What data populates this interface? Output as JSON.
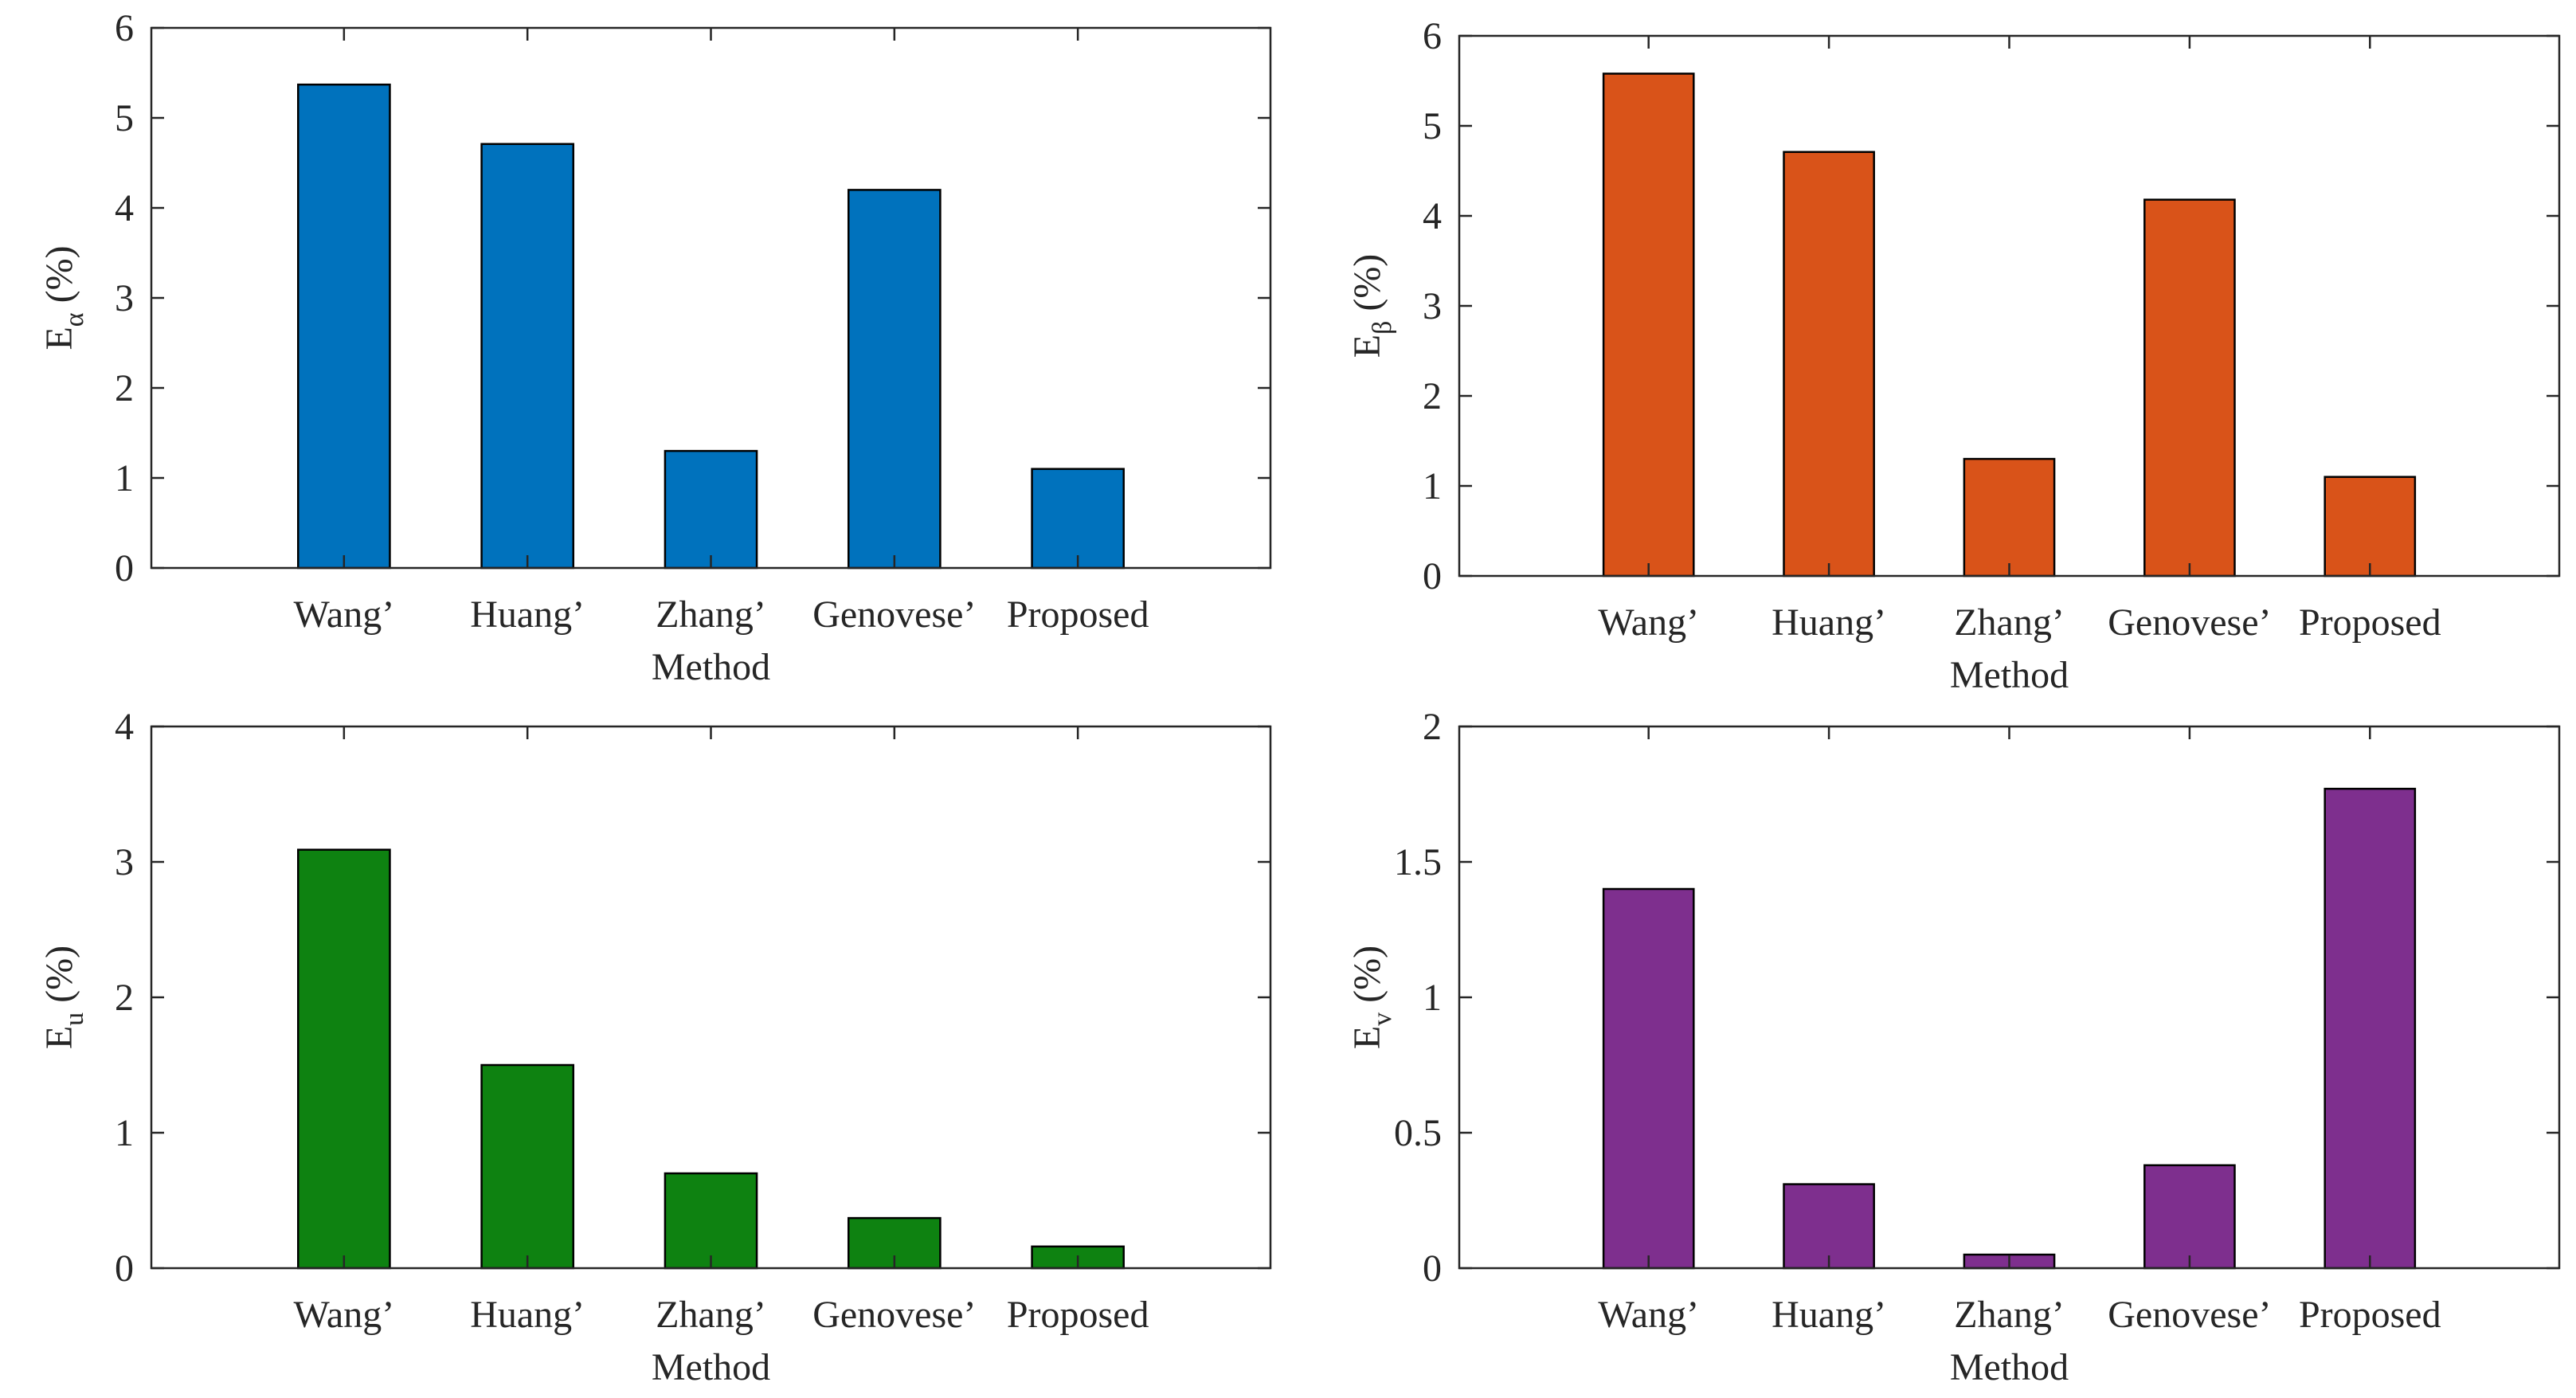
{
  "chart_data": [
    {
      "type": "bar",
      "categories": [
        "Wang’",
        "Huang’",
        "Zhang’",
        "Genovese’",
        "Proposed"
      ],
      "values": [
        5.37,
        4.71,
        1.3,
        4.2,
        1.1
      ],
      "xlabel": "Method",
      "ylabel_main": "E",
      "ylabel_sub": "α",
      "ylabel_unit": "(%)",
      "ylim": [
        0,
        6
      ],
      "yticks": [
        0,
        1,
        2,
        3,
        4,
        5,
        6
      ],
      "ytick_labels": [
        "0",
        "1",
        "2",
        "3",
        "4",
        "5",
        "6"
      ],
      "color": "#0072BD",
      "grid": false
    },
    {
      "type": "bar",
      "categories": [
        "Wang’",
        "Huang’",
        "Zhang’",
        "Genovese’",
        "Proposed"
      ],
      "values": [
        5.58,
        4.71,
        1.3,
        4.18,
        1.1
      ],
      "xlabel": "Method",
      "ylabel_main": "E",
      "ylabel_sub": "β",
      "ylabel_unit": "(%)",
      "ylim": [
        0,
        6
      ],
      "yticks": [
        0,
        1,
        2,
        3,
        4,
        5,
        6
      ],
      "ytick_labels": [
        "0",
        "1",
        "2",
        "3",
        "4",
        "5",
        "6"
      ],
      "color": "#D95319",
      "grid": false
    },
    {
      "type": "bar",
      "categories": [
        "Wang’",
        "Huang’",
        "Zhang’",
        "Genovese’",
        "Proposed"
      ],
      "values": [
        3.09,
        1.5,
        0.7,
        0.37,
        0.16
      ],
      "xlabel": "Method",
      "ylabel_main": "E",
      "ylabel_sub": "u",
      "ylabel_unit": "(%)",
      "ylim": [
        0,
        4
      ],
      "yticks": [
        0,
        1,
        2,
        3,
        4
      ],
      "ytick_labels": [
        "0",
        "1",
        "2",
        "3",
        "4"
      ],
      "color": "#0E8211",
      "grid": false
    },
    {
      "type": "bar",
      "categories": [
        "Wang’",
        "Huang’",
        "Zhang’",
        "Genovese’",
        "Proposed"
      ],
      "values": [
        1.4,
        0.31,
        0.05,
        0.38,
        1.77
      ],
      "xlabel": "Method",
      "ylabel_main": "E",
      "ylabel_sub": "v",
      "ylabel_unit": "(%)",
      "ylim": [
        0,
        2
      ],
      "yticks": [
        0,
        0.5,
        1,
        1.5,
        2
      ],
      "ytick_labels": [
        "0",
        "0.5",
        "1",
        "1.5",
        "2"
      ],
      "color": "#7E2F8E",
      "grid": false
    }
  ]
}
